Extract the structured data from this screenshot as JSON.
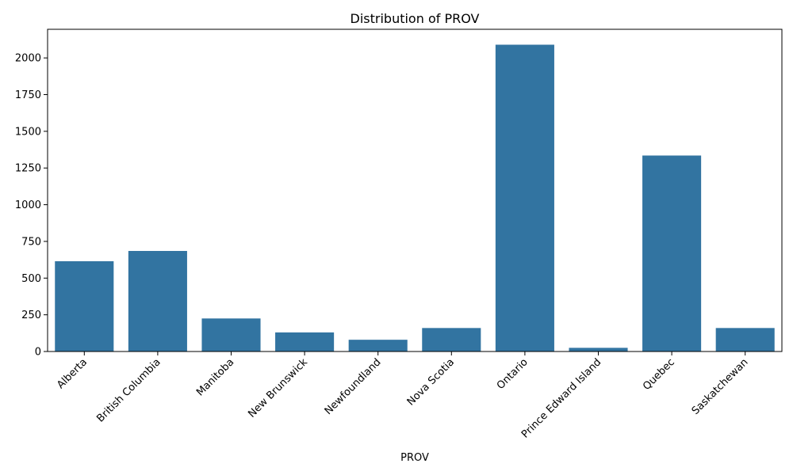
{
  "chart_data": {
    "type": "bar",
    "title": "Distribution of PROV",
    "xlabel": "PROV",
    "ylabel": "",
    "categories": [
      "Alberta",
      "British Columbia",
      "Manitoba",
      "New Brunswick",
      "Newfoundland",
      "Nova Scotia",
      "Ontario",
      "Prince Edward Island",
      "Quebec",
      "Saskatchewan"
    ],
    "values": [
      615,
      685,
      225,
      130,
      80,
      160,
      2090,
      25,
      1335,
      160
    ],
    "ylim": [
      0,
      2195
    ],
    "yticks": [
      0,
      250,
      500,
      750,
      1000,
      1250,
      1500,
      1750,
      2000
    ],
    "grid": false,
    "legend": "none",
    "bar_color": "#3274a1"
  }
}
